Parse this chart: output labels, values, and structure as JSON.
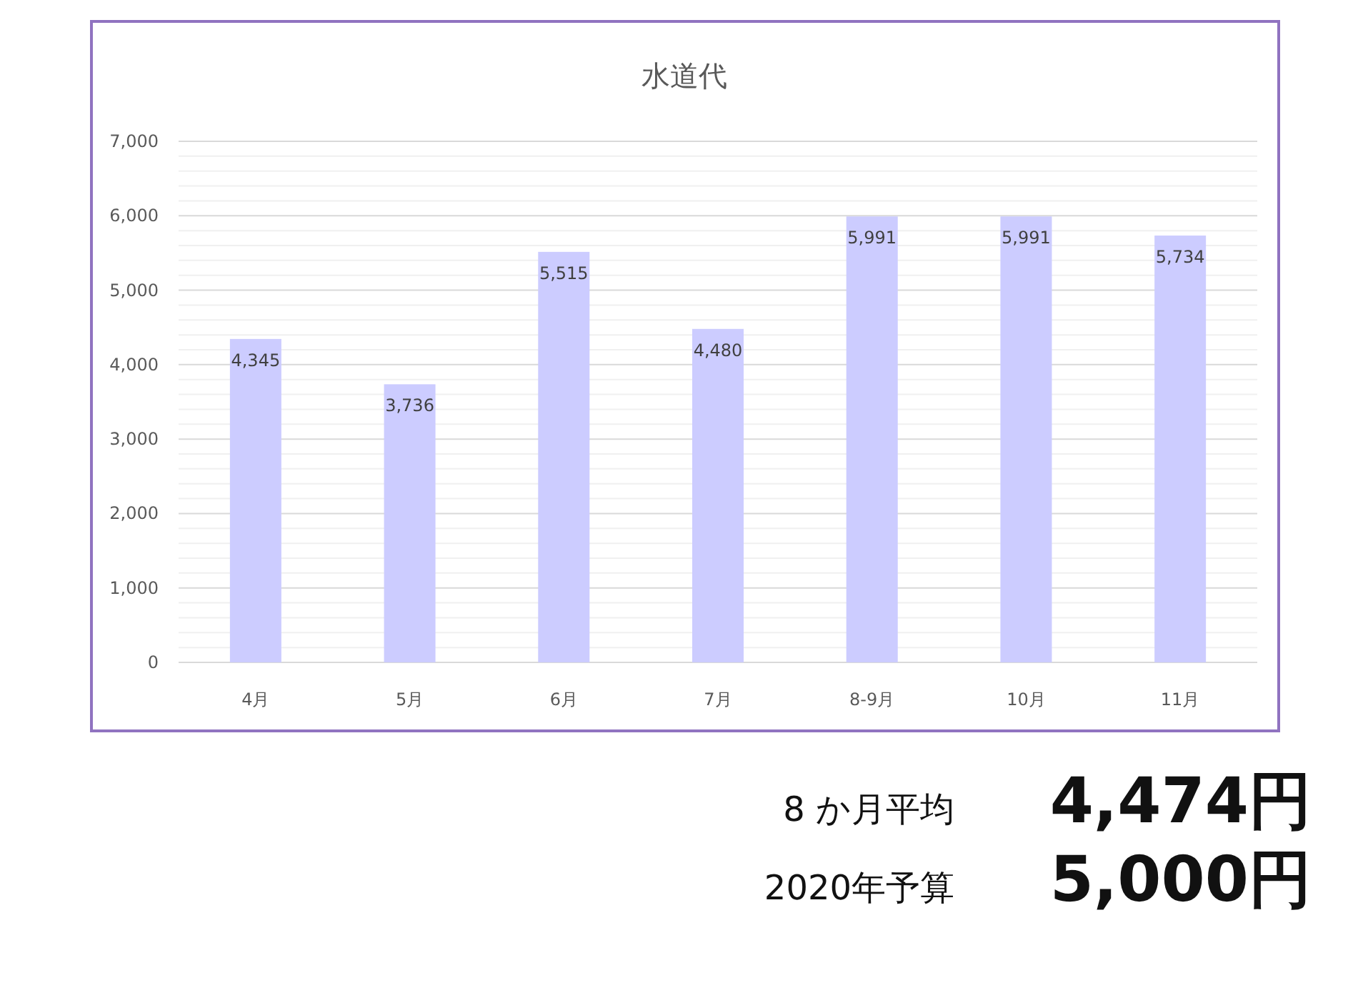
{
  "chart_data": {
    "type": "bar",
    "title": "水道代",
    "categories": [
      "4月",
      "5月",
      "6月",
      "7月",
      "8-9月",
      "10月",
      "11月"
    ],
    "values": [
      4345,
      3736,
      5515,
      4480,
      5991,
      5991,
      5734
    ],
    "color": "#ccccff",
    "ylim": [
      0,
      7000
    ],
    "yticks": [
      0,
      {
        "value": 1000,
        "label": "1,000"
      },
      {
        "value": 2000,
        "label": "2,000"
      },
      {
        "value": 3000,
        "label": "3,000"
      },
      {
        "value": 4000,
        "label": "4,000"
      },
      {
        "value": 5000,
        "label": "5,000"
      },
      {
        "value": 6000,
        "label": "6,000"
      },
      {
        "value": 7000,
        "label": "7,000"
      }
    ],
    "grid": "y",
    "value_labels": [
      "4,345",
      "3,736",
      "5,515",
      "4,480",
      "5,991",
      "5,991",
      "5,734"
    ],
    "annotations": [
      "8 か月平均",
      "4,474円",
      "2020年予算",
      "5,000円"
    ]
  }
}
